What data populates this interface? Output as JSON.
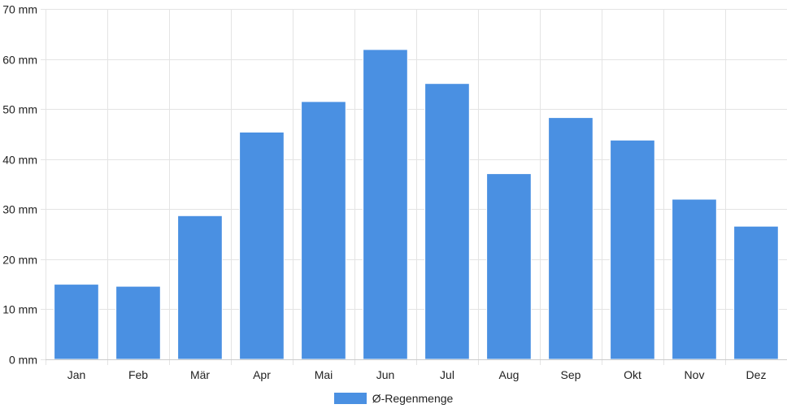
{
  "chart_data": {
    "type": "bar",
    "categories": [
      "Jan",
      "Feb",
      "Mär",
      "Apr",
      "Mai",
      "Jun",
      "Jul",
      "Aug",
      "Sep",
      "Okt",
      "Nov",
      "Dez"
    ],
    "series": [
      {
        "name": "Ø-Regenmenge",
        "values": [
          15.0,
          14.6,
          28.7,
          45.4,
          51.5,
          61.9,
          55.1,
          37.1,
          48.3,
          43.8,
          32.0,
          26.6
        ]
      }
    ],
    "ylim": [
      0,
      70
    ],
    "yticks": [
      0,
      10,
      20,
      30,
      40,
      50,
      60,
      70
    ],
    "ytick_suffix": " mm",
    "grid": true,
    "legend_position": "bottom-center",
    "colors": {
      "bar": "#4a90e2",
      "bar_border": "#ffffff",
      "grid": "#e4e4e4",
      "axis": "#cccccc"
    }
  },
  "legend": {
    "label": "Ø-Regenmenge"
  }
}
